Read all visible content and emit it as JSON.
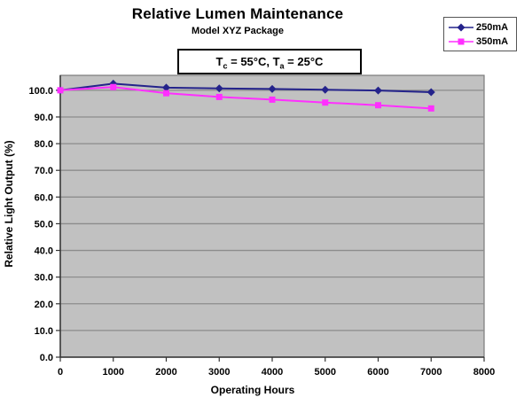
{
  "title": "Relative Lumen Maintenance",
  "subtitle": "Model XYZ Package",
  "condition": {
    "p1": "T",
    "s1": "c",
    "p2": " = 55°C, T",
    "s2": "a",
    "p3": " = 25°C"
  },
  "chart_data": {
    "type": "line",
    "title": "Relative Lumen Maintenance",
    "subtitle": "Model XYZ Package",
    "annotation": "Tc = 55°C, Ta = 25°C",
    "xlabel": "Operating Hours",
    "ylabel": "Relative Light Output (%)",
    "x": [
      0,
      1000,
      2000,
      3000,
      4000,
      5000,
      6000,
      7000
    ],
    "series": [
      {
        "name": "250mA",
        "color": "#24238B",
        "marker": "diamond",
        "values": [
          100.0,
          102.5,
          101.0,
          100.7,
          100.5,
          100.2,
          99.9,
          99.3
        ]
      },
      {
        "name": "350mA",
        "color": "#FF2FFF",
        "marker": "square",
        "values": [
          100.0,
          101.2,
          98.9,
          97.5,
          96.5,
          95.4,
          94.4,
          93.2
        ]
      }
    ],
    "xlim": [
      0,
      8000
    ],
    "ylim": [
      0,
      105.6
    ],
    "xticks": [
      0,
      1000,
      2000,
      3000,
      4000,
      5000,
      6000,
      7000,
      8000
    ],
    "xtick_labels": [
      "0",
      "1000",
      "2000",
      "3000",
      "4000",
      "5000",
      "6000",
      "7000",
      "8000"
    ],
    "yticks": [
      0,
      10,
      20,
      30,
      40,
      50,
      60,
      70,
      80,
      90,
      100
    ],
    "ytick_labels": [
      "0.0",
      "10.0",
      "20.0",
      "30.0",
      "40.0",
      "50.0",
      "60.0",
      "70.0",
      "80.0",
      "90.0",
      "100.0"
    ],
    "grid": "horizontal",
    "legend_position": "top-right",
    "plot_bg": "#C1C1C1",
    "gridline_color": "#8C8C8C",
    "plot_border_color": "#7A7A7A",
    "axis_color": "#333333"
  }
}
